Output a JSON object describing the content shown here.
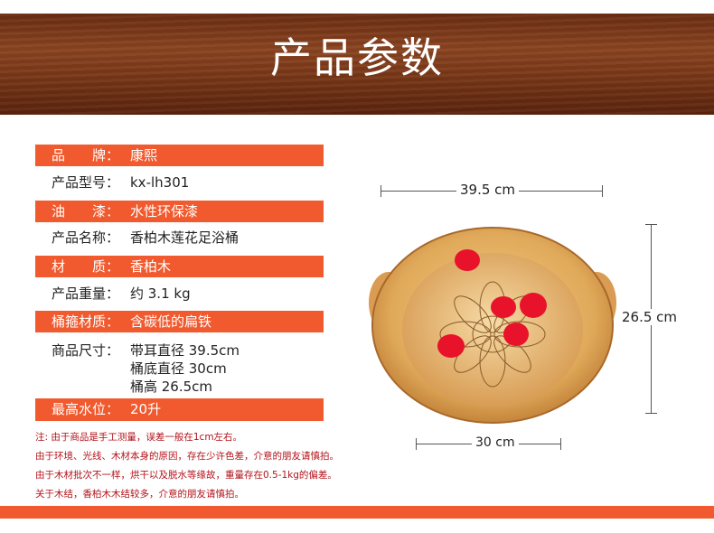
{
  "title": "产品参数",
  "specs": [
    {
      "label": "品　　牌：",
      "value": "康熙"
    },
    {
      "label": "产品型号：",
      "value": "kx-lh301"
    },
    {
      "label": "油　　漆：",
      "value": "水性环保漆"
    },
    {
      "label": "产品名称：",
      "value": "香柏木莲花足浴桶"
    },
    {
      "label": "材　　质：",
      "value": "香柏木"
    },
    {
      "label": "产品重量：",
      "value": "约 3.1 kg"
    },
    {
      "label": "桶箍材质：",
      "value": "含碳低的扁铁"
    },
    {
      "label": "商品尺寸：",
      "value": "带耳直径 39.5cm",
      "value2": "桶底直径 30cm",
      "value3": "桶高 26.5cm"
    },
    {
      "label": "最高水位：",
      "value": "20升"
    }
  ],
  "notes": [
    "注: 由于商品是手工测量，误差一般在1cm左右。",
    "由于环境、光线、木材本身的原因，存在少许色差，介意的朋友请慎拍。",
    "由于木材批次不一样，烘干以及脱水等缘故，重量存在0.5-1kg的偏差。",
    "关于木结，香柏木木结较多，介意的朋友请慎拍。"
  ],
  "dimensions": {
    "width_ears": "39.5 cm",
    "height": "26.5 cm",
    "bottom": "30 cm"
  },
  "colors": {
    "accent": "#f15a2e",
    "note": "#b3131b"
  }
}
